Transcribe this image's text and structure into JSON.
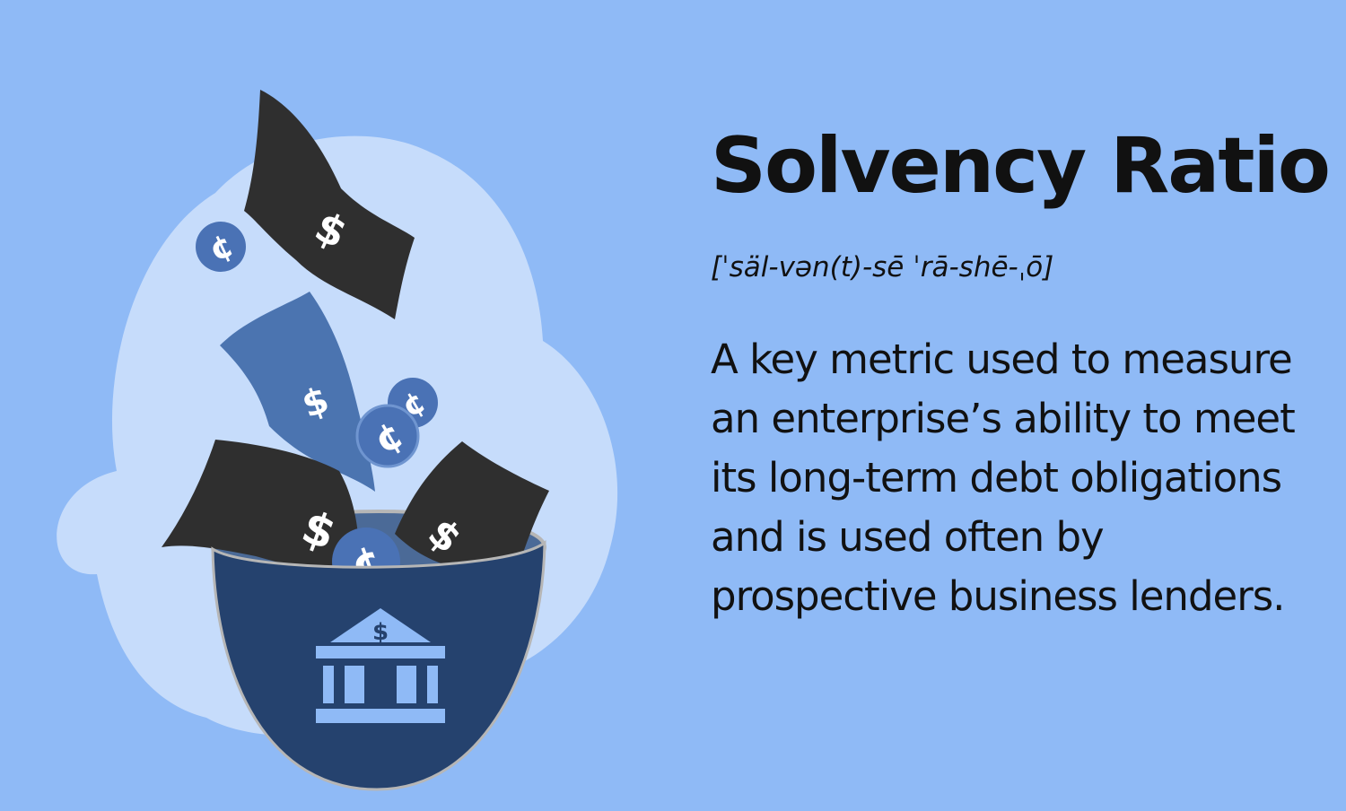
{
  "heading": {
    "title": "Solvency Ratio",
    "pronunciation": "[ˈsäl-vən(t)-sē ˈrā-shē-ˌō]"
  },
  "definition": {
    "text": "A key metric used to measure an enterprise’s ability to meet its long-term debt obligations and is used often by prospective business lenders."
  },
  "illustration": {
    "bill_symbol": "$",
    "coin_symbol": "¢",
    "bank_symbol": "$",
    "icons": [
      "dollar-bill-icon",
      "cent-coin-icon",
      "bowl-icon",
      "bank-building-icon"
    ]
  },
  "colors": {
    "background": "#8fbaf6",
    "cloud": "#c6dcfb",
    "bill_dark": "#2f2f2f",
    "bill_blue": "#4b74b0",
    "coin": "#4a72b5",
    "bowl": "#25426e",
    "bowl_rim": "#b6b6b6",
    "bank": "#8fbaf6",
    "text": "#111111"
  }
}
